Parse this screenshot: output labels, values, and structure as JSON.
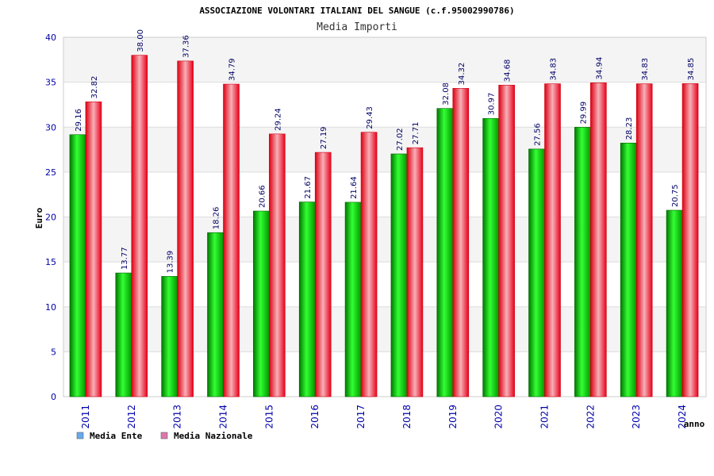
{
  "chart_data": {
    "type": "bar",
    "title": "ASSOCIAZIONE VOLONTARI ITALIANI DEL SANGUE (c.f.95002990786)",
    "subtitle": "Media Importi",
    "xlabel": "anno",
    "ylabel": "Euro",
    "ylim": [
      0,
      40
    ],
    "yticks": [
      0,
      5,
      10,
      15,
      20,
      25,
      30,
      35,
      40
    ],
    "grid": true,
    "legend_position": "bottom-left",
    "categories": [
      "2011",
      "2012",
      "2013",
      "2014",
      "2015",
      "2016",
      "2017",
      "2018",
      "2019",
      "2020",
      "2021",
      "2022",
      "2023",
      "2024"
    ],
    "series": [
      {
        "name": "Media Ente",
        "color": "#00cc00",
        "legend_color": "#66aaee",
        "values": [
          29.16,
          13.77,
          13.39,
          18.26,
          20.66,
          21.67,
          21.64,
          27.02,
          32.08,
          30.97,
          27.56,
          29.99,
          28.23,
          20.75
        ],
        "labels": [
          "29.16",
          "13.77",
          "13.39",
          "18.26",
          "20.66",
          "21.67",
          "21.64",
          "27.02",
          "32.08",
          "30.97",
          "27.56",
          "29.99",
          "28.23",
          "20.75"
        ]
      },
      {
        "name": "Media Nazionale",
        "color": "#ee1122",
        "legend_color": "#dd77aa",
        "values": [
          32.82,
          38.0,
          37.36,
          34.79,
          29.24,
          27.19,
          29.43,
          27.71,
          34.32,
          34.68,
          34.83,
          34.94,
          34.83,
          34.85
        ],
        "labels": [
          "32.82",
          "38.00",
          "37.36",
          "34.79",
          "29.24",
          "27.19",
          "29.43",
          "27.71",
          "34.32",
          "34.68",
          "34.83",
          "34.94",
          "34.83",
          "34.85"
        ]
      }
    ]
  }
}
